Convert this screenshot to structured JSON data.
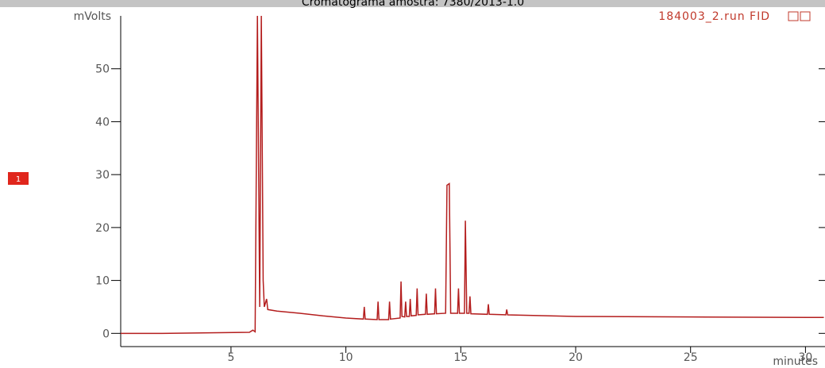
{
  "chart_data": {
    "type": "line",
    "title": "Cromatograma amostra: 7380/2013-1.0",
    "y_label": "mVolts",
    "x_label": "minutes",
    "marker_label": "1",
    "x": [
      0.2,
      2.0,
      5.8,
      5.95,
      6.05,
      6.15,
      6.25,
      6.32,
      6.4,
      6.45,
      6.55,
      6.6,
      7,
      8,
      9,
      10,
      10.76,
      10.8,
      10.84,
      11.36,
      11.4,
      11.44,
      11.86,
      11.9,
      11.94,
      12.36,
      12.4,
      12.44,
      12.56,
      12.6,
      12.64,
      12.76,
      12.8,
      12.84,
      13.06,
      13.1,
      13.14,
      13.46,
      13.5,
      13.54,
      13.86,
      13.9,
      13.94,
      14.34,
      14.4,
      14.5,
      14.56,
      14.86,
      14.9,
      14.94,
      15.16,
      15.2,
      15.26,
      15.36,
      15.4,
      15.44,
      16.16,
      16.2,
      16.24,
      16.96,
      17.0,
      17.04,
      20,
      25,
      30.8
    ],
    "series": [
      {
        "name": "184003_2.run FID",
        "color": "#b41e1e",
        "values": [
          0,
          0,
          0.2,
          0.6,
          0.3,
          60,
          5,
          60,
          10,
          5,
          6.5,
          4.5,
          4.2,
          3.8,
          3.3,
          2.9,
          2.7,
          5,
          2.7,
          2.6,
          6,
          2.6,
          2.6,
          6,
          2.7,
          2.9,
          9.8,
          3.2,
          3.1,
          6,
          3.2,
          3.2,
          6.5,
          3.3,
          3.4,
          8.5,
          3.5,
          3.6,
          7.5,
          3.6,
          3.7,
          8.5,
          3.7,
          3.8,
          28,
          28.3,
          3.8,
          3.8,
          8.5,
          3.8,
          3.8,
          21.3,
          3.8,
          3.8,
          7,
          3.7,
          3.6,
          5.5,
          3.6,
          3.5,
          4.5,
          3.5,
          3.2,
          3.1,
          3.0
        ]
      }
    ],
    "xlim": [
      0.2,
      30.85
    ],
    "xticks": [
      5,
      10,
      15,
      20,
      25,
      30
    ],
    "ylim": [
      -2.5,
      60
    ],
    "yticks": [
      0,
      10,
      20,
      30,
      40,
      50
    ]
  }
}
